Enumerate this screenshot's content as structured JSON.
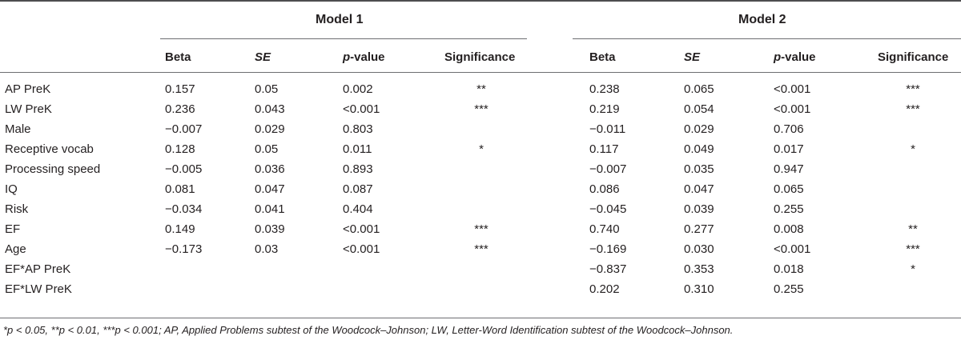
{
  "models": [
    {
      "title": "Model 1"
    },
    {
      "title": "Model 2"
    }
  ],
  "headers": {
    "beta": "Beta",
    "se": "SE",
    "p_prefix": "p",
    "p_suffix": "-value",
    "significance": "Significance"
  },
  "rows": [
    {
      "label": "AP PreK",
      "m1": [
        "0.157",
        "0.05",
        "0.002",
        "**"
      ],
      "m2": [
        "0.238",
        "0.065",
        "<0.001",
        "***"
      ]
    },
    {
      "label": "LW PreK",
      "m1": [
        "0.236",
        "0.043",
        "<0.001",
        "***"
      ],
      "m2": [
        "0.219",
        "0.054",
        "<0.001",
        "***"
      ]
    },
    {
      "label": "Male",
      "m1": [
        "−0.007",
        "0.029",
        "0.803",
        ""
      ],
      "m2": [
        "−0.011",
        "0.029",
        "0.706",
        ""
      ]
    },
    {
      "label": "Receptive vocab",
      "m1": [
        "0.128",
        "0.05",
        "0.011",
        "*"
      ],
      "m2": [
        "0.117",
        "0.049",
        "0.017",
        "*"
      ]
    },
    {
      "label": "Processing speed",
      "m1": [
        "−0.005",
        "0.036",
        "0.893",
        ""
      ],
      "m2": [
        "−0.007",
        "0.035",
        "0.947",
        ""
      ]
    },
    {
      "label": "IQ",
      "m1": [
        "0.081",
        "0.047",
        "0.087",
        ""
      ],
      "m2": [
        "0.086",
        "0.047",
        "0.065",
        ""
      ]
    },
    {
      "label": "Risk",
      "m1": [
        "−0.034",
        "0.041",
        "0.404",
        ""
      ],
      "m2": [
        "−0.045",
        "0.039",
        "0.255",
        ""
      ]
    },
    {
      "label": "EF",
      "m1": [
        "0.149",
        "0.039",
        "<0.001",
        "***"
      ],
      "m2": [
        "0.740",
        "0.277",
        "0.008",
        "**"
      ]
    },
    {
      "label": "Age",
      "m1": [
        "−0.173",
        "0.03",
        "<0.001",
        "***"
      ],
      "m2": [
        "−0.169",
        "0.030",
        "<0.001",
        "***"
      ]
    },
    {
      "label": "EF*AP PreK",
      "m1": [
        "",
        "",
        "",
        ""
      ],
      "m2": [
        "−0.837",
        "0.353",
        "0.018",
        "*"
      ]
    },
    {
      "label": "EF*LW PreK",
      "m1": [
        "",
        "",
        "",
        ""
      ],
      "m2": [
        "0.202",
        "0.310",
        "0.255",
        ""
      ]
    }
  ],
  "footnote": "*p < 0.05, **p < 0.01, ***p < 0.001; AP, Applied Problems subtest of the Woodcock–Johnson; LW, Letter-Word Identification subtest of the Woodcock–Johnson."
}
